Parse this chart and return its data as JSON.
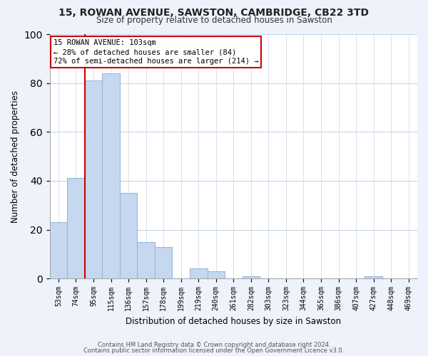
{
  "title1": "15, ROWAN AVENUE, SAWSTON, CAMBRIDGE, CB22 3TD",
  "title2": "Size of property relative to detached houses in Sawston",
  "xlabel": "Distribution of detached houses by size in Sawston",
  "ylabel": "Number of detached properties",
  "bar_labels": [
    "53sqm",
    "74sqm",
    "95sqm",
    "115sqm",
    "136sqm",
    "157sqm",
    "178sqm",
    "199sqm",
    "219sqm",
    "240sqm",
    "261sqm",
    "282sqm",
    "303sqm",
    "323sqm",
    "344sqm",
    "365sqm",
    "386sqm",
    "407sqm",
    "427sqm",
    "448sqm",
    "469sqm"
  ],
  "bar_values": [
    23,
    41,
    81,
    84,
    35,
    15,
    13,
    0,
    4,
    3,
    0,
    1,
    0,
    0,
    0,
    0,
    0,
    0,
    1,
    0,
    0
  ],
  "bar_color": "#c5d8f0",
  "bar_edge_color": "#9ab8d8",
  "vline_color": "#cc0000",
  "vline_x_idx": 2,
  "annotation_text": "15 ROWAN AVENUE: 103sqm\n← 28% of detached houses are smaller (84)\n72% of semi-detached houses are larger (214) →",
  "ylim": [
    0,
    100
  ],
  "yticks": [
    0,
    20,
    40,
    60,
    80,
    100
  ],
  "footer1": "Contains HM Land Registry data © Crown copyright and database right 2024.",
  "footer2": "Contains public sector information licensed under the Open Government Licence v3.0.",
  "bg_color": "#edf2fb",
  "plot_bg_color": "#ffffff",
  "grid_color": "#c8d4e8"
}
